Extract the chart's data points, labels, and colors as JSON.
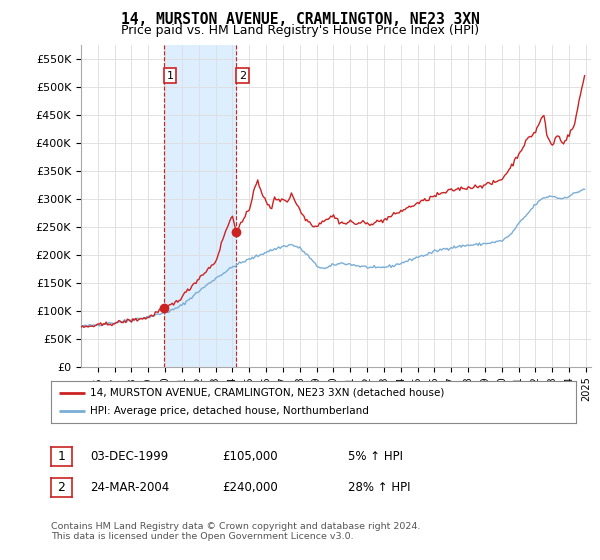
{
  "title": "14, MURSTON AVENUE, CRAMLINGTON, NE23 3XN",
  "subtitle": "Price paid vs. HM Land Registry's House Price Index (HPI)",
  "ylabel_ticks": [
    "£0",
    "£50K",
    "£100K",
    "£150K",
    "£200K",
    "£250K",
    "£300K",
    "£350K",
    "£400K",
    "£450K",
    "£500K",
    "£550K"
  ],
  "ylim": [
    0,
    575000
  ],
  "ytick_values": [
    0,
    50000,
    100000,
    150000,
    200000,
    250000,
    300000,
    350000,
    400000,
    450000,
    500000,
    550000
  ],
  "sale1_x": 1999.92,
  "sale1_y": 105000,
  "sale2_x": 2004.23,
  "sale2_y": 240000,
  "hpi_color": "#7aaed6",
  "price_color": "#cc2222",
  "grid_color": "#dddddd",
  "bg_color": "#ffffff",
  "highlight_color": "#ddeeff",
  "legend_line1": "14, MURSTON AVENUE, CRAMLINGTON, NE23 3XN (detached house)",
  "legend_line2": "HPI: Average price, detached house, Northumberland",
  "table_rows": [
    {
      "num": "1",
      "date": "03-DEC-1999",
      "price": "£105,000",
      "change": "5% ↑ HPI"
    },
    {
      "num": "2",
      "date": "24-MAR-2004",
      "price": "£240,000",
      "change": "28% ↑ HPI"
    }
  ],
  "footer": "Contains HM Land Registry data © Crown copyright and database right 2024.\nThis data is licensed under the Open Government Licence v3.0.",
  "xtick_start": 1996,
  "xtick_end": 2025
}
